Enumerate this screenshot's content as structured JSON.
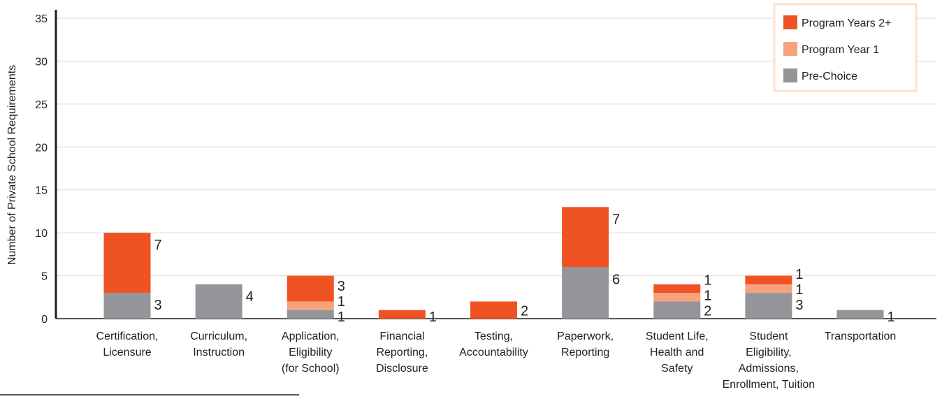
{
  "chart_data": {
    "type": "bar",
    "stacked": true,
    "title": "",
    "xlabel": "",
    "ylabel": "Number of Private School Requirements",
    "ylim": [
      0,
      35
    ],
    "yticks": [
      0,
      5,
      10,
      15,
      20,
      25,
      30,
      35
    ],
    "grid": true,
    "legend_position": "top-right",
    "categories": [
      [
        "Certification,",
        "Licensure"
      ],
      [
        "Curriculum,",
        "Instruction"
      ],
      [
        "Application,",
        "Eligibility",
        "(for School)"
      ],
      [
        "Financial",
        "Reporting,",
        "Disclosure"
      ],
      [
        "Testing,",
        "Accountability"
      ],
      [
        "Paperwork,",
        "Reporting"
      ],
      [
        "Student Life,",
        "Health and",
        "Safety"
      ],
      [
        "Student",
        "Eligibility,",
        "Admissions,",
        "Enrollment, Tuition"
      ],
      [
        "Transportation"
      ]
    ],
    "series": [
      {
        "name": "Pre-Choice",
        "color": "#939598",
        "values": [
          3,
          4,
          1,
          0,
          0,
          6,
          2,
          3,
          1
        ]
      },
      {
        "name": "Program Year 1",
        "color": "#f7a27c",
        "values": [
          0,
          0,
          1,
          0,
          0,
          0,
          1,
          1,
          0
        ]
      },
      {
        "name": "Program Years 2+",
        "color": "#f05323",
        "values": [
          7,
          0,
          3,
          1,
          2,
          7,
          1,
          1,
          0
        ]
      }
    ],
    "legend_order": [
      "Program Years 2+",
      "Program Year 1",
      "Pre-Choice"
    ],
    "legend_border_color": "#fde0cc",
    "gridline_color": "#d9d9d9"
  }
}
